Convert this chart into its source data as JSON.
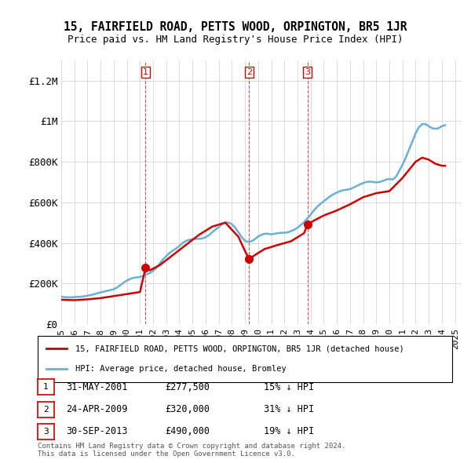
{
  "title": "15, FAIRFIELD ROAD, PETTS WOOD, ORPINGTON, BR5 1JR",
  "subtitle": "Price paid vs. HM Land Registry's House Price Index (HPI)",
  "ylabel_ticks": [
    "£0",
    "£200K",
    "£400K",
    "£600K",
    "£800K",
    "£1M",
    "£1.2M"
  ],
  "ytick_values": [
    0,
    200000,
    400000,
    600000,
    800000,
    1000000,
    1200000
  ],
  "ylim": [
    0,
    1300000
  ],
  "xlim_start": 1995.0,
  "xlim_end": 2025.5,
  "hpi_color": "#6ab0d4",
  "price_color": "#cc0000",
  "sale_marker_color": "#cc0000",
  "sale_label_color": "#cc0000",
  "legend_label_price": "15, FAIRFIELD ROAD, PETTS WOOD, ORPINGTON, BR5 1JR (detached house)",
  "legend_label_hpi": "HPI: Average price, detached house, Bromley",
  "transactions": [
    {
      "num": 1,
      "date": "31-MAY-2001",
      "price": 277500,
      "hpi_pct": "15% ↓ HPI",
      "x": 2001.42
    },
    {
      "num": 2,
      "date": "24-APR-2009",
      "price": 320000,
      "hpi_pct": "31% ↓ HPI",
      "x": 2009.32
    },
    {
      "num": 3,
      "date": "30-SEP-2013",
      "price": 490000,
      "hpi_pct": "19% ↓ HPI",
      "x": 2013.75
    }
  ],
  "hpi_data": {
    "years": [
      1995.0,
      1995.25,
      1995.5,
      1995.75,
      1996.0,
      1996.25,
      1996.5,
      1996.75,
      1997.0,
      1997.25,
      1997.5,
      1997.75,
      1998.0,
      1998.25,
      1998.5,
      1998.75,
      1999.0,
      1999.25,
      1999.5,
      1999.75,
      2000.0,
      2000.25,
      2000.5,
      2000.75,
      2001.0,
      2001.25,
      2001.5,
      2001.75,
      2002.0,
      2002.25,
      2002.5,
      2002.75,
      2003.0,
      2003.25,
      2003.5,
      2003.75,
      2004.0,
      2004.25,
      2004.5,
      2004.75,
      2005.0,
      2005.25,
      2005.5,
      2005.75,
      2006.0,
      2006.25,
      2006.5,
      2006.75,
      2007.0,
      2007.25,
      2007.5,
      2007.75,
      2008.0,
      2008.25,
      2008.5,
      2008.75,
      2009.0,
      2009.25,
      2009.5,
      2009.75,
      2010.0,
      2010.25,
      2010.5,
      2010.75,
      2011.0,
      2011.25,
      2011.5,
      2011.75,
      2012.0,
      2012.25,
      2012.5,
      2012.75,
      2013.0,
      2013.25,
      2013.5,
      2013.75,
      2014.0,
      2014.25,
      2014.5,
      2014.75,
      2015.0,
      2015.25,
      2015.5,
      2015.75,
      2016.0,
      2016.25,
      2016.5,
      2016.75,
      2017.0,
      2017.25,
      2017.5,
      2017.75,
      2018.0,
      2018.25,
      2018.5,
      2018.75,
      2019.0,
      2019.25,
      2019.5,
      2019.75,
      2020.0,
      2020.25,
      2020.5,
      2020.75,
      2021.0,
      2021.25,
      2021.5,
      2021.75,
      2022.0,
      2022.25,
      2022.5,
      2022.75,
      2023.0,
      2023.25,
      2023.5,
      2023.75,
      2024.0,
      2024.25
    ],
    "values": [
      135000,
      133000,
      132000,
      132000,
      133000,
      134000,
      135000,
      137000,
      140000,
      143000,
      147000,
      152000,
      156000,
      160000,
      164000,
      167000,
      172000,
      180000,
      192000,
      204000,
      215000,
      222000,
      228000,
      230000,
      232000,
      238000,
      245000,
      252000,
      262000,
      278000,
      298000,
      318000,
      335000,
      350000,
      362000,
      372000,
      385000,
      400000,
      410000,
      415000,
      418000,
      420000,
      420000,
      422000,
      428000,
      438000,
      452000,
      465000,
      478000,
      492000,
      500000,
      500000,
      492000,
      475000,
      452000,
      428000,
      410000,
      405000,
      408000,
      418000,
      432000,
      440000,
      445000,
      445000,
      442000,
      445000,
      448000,
      450000,
      450000,
      452000,
      458000,
      465000,
      475000,
      488000,
      502000,
      520000,
      540000,
      560000,
      578000,
      592000,
      605000,
      618000,
      630000,
      640000,
      648000,
      655000,
      660000,
      662000,
      665000,
      672000,
      680000,
      688000,
      695000,
      700000,
      702000,
      700000,
      698000,
      700000,
      705000,
      712000,
      715000,
      712000,
      725000,
      755000,
      785000,
      820000,
      860000,
      900000,
      940000,
      970000,
      985000,
      985000,
      975000,
      965000,
      962000,
      965000,
      975000,
      980000
    ]
  },
  "price_path_data": {
    "years": [
      1995.0,
      1996.0,
      1997.0,
      1998.0,
      1999.0,
      2000.0,
      2001.0,
      2001.42,
      2001.75,
      2002.5,
      2003.5,
      2004.5,
      2005.5,
      2006.5,
      2007.5,
      2008.5,
      2009.0,
      2009.32,
      2009.75,
      2010.5,
      2011.5,
      2012.5,
      2013.5,
      2013.75,
      2014.25,
      2015.0,
      2016.0,
      2017.0,
      2018.0,
      2019.0,
      2020.0,
      2021.0,
      2022.0,
      2022.5,
      2023.0,
      2023.5,
      2024.0,
      2024.25
    ],
    "values": [
      120000,
      118000,
      122000,
      128000,
      138000,
      148000,
      158000,
      277500,
      265000,
      290000,
      340000,
      390000,
      440000,
      480000,
      500000,
      430000,
      360000,
      320000,
      340000,
      370000,
      390000,
      408000,
      448000,
      490000,
      510000,
      535000,
      560000,
      590000,
      625000,
      645000,
      655000,
      720000,
      800000,
      820000,
      810000,
      790000,
      780000,
      780000
    ]
  },
  "copyright_text": "Contains HM Land Registry data © Crown copyright and database right 2024.\nThis data is licensed under the Open Government Licence v3.0.",
  "bg_color": "#ffffff",
  "grid_color": "#cccccc",
  "xtick_years": [
    1995,
    1996,
    1997,
    1998,
    1999,
    2000,
    2001,
    2002,
    2003,
    2004,
    2005,
    2006,
    2007,
    2008,
    2009,
    2010,
    2011,
    2012,
    2013,
    2014,
    2015,
    2016,
    2017,
    2018,
    2019,
    2020,
    2021,
    2022,
    2023,
    2024,
    2025
  ]
}
